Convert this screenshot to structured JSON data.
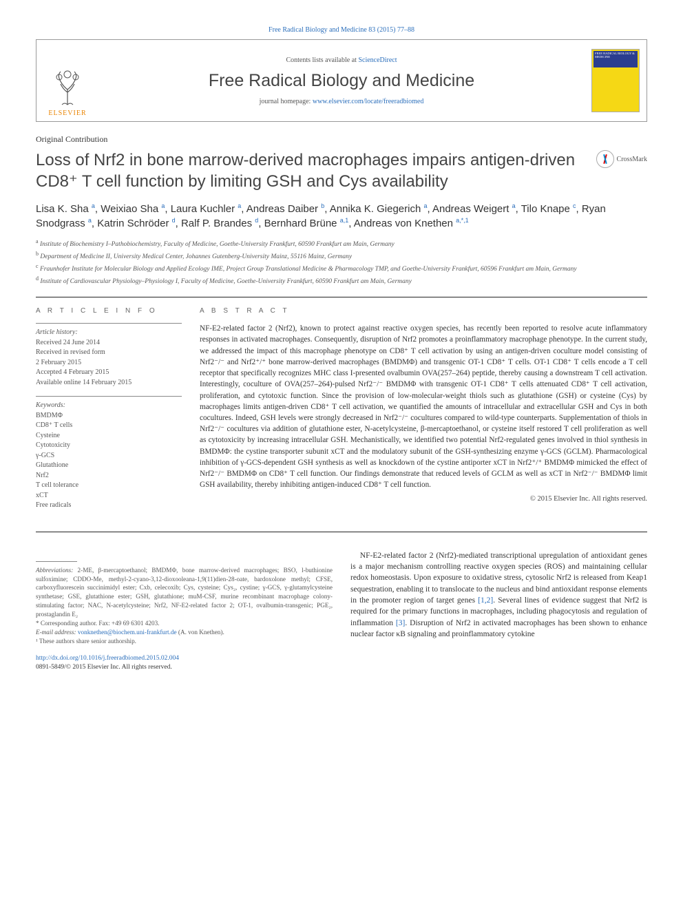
{
  "topLink": "Free Radical Biology and Medicine 83 (2015) 77–88",
  "header": {
    "contentsPrefix": "Contents lists available at ",
    "contentsLink": "ScienceDirect",
    "journal": "Free Radical Biology and Medicine",
    "homepagePrefix": "journal homepage: ",
    "homepageLink": "www.elsevier.com/locate/freeradbiomed",
    "elsevier": "ELSEVIER",
    "coverText": "FREE RADICAL BIOLOGY & MEDICINE"
  },
  "sectionLabel": "Original Contribution",
  "title": "Loss of Nrf2 in bone marrow-derived macrophages impairs antigen-driven CD8⁺ T cell function by limiting GSH and Cys availability",
  "crossmark": "CrossMark",
  "authorsHtml": "Lisa K. Sha <sup>a</sup>, Weixiao Sha <sup>a</sup>, Laura Kuchler <sup>a</sup>, Andreas Daiber <sup>b</sup>, Annika K. Giegerich <sup>a</sup>, Andreas Weigert <sup>a</sup>, Tilo Knape <sup>c</sup>, Ryan Snodgrass <sup>a</sup>, Katrin Schröder <sup>d</sup>, Ralf P. Brandes <sup>d</sup>, Bernhard Brüne <sup>a,1</sup>, Andreas von Knethen <sup>a,*,1</sup>",
  "affiliations": [
    {
      "sup": "a",
      "text": "Institute of Biochemistry I–Pathobiochemistry, Faculty of Medicine, Goethe-University Frankfurt, 60590 Frankfurt am Main, Germany"
    },
    {
      "sup": "b",
      "text": "Department of Medicine II, University Medical Center, Johannes Gutenberg-University Mainz, 55116 Mainz, Germany"
    },
    {
      "sup": "c",
      "text": "Fraunhofer Institute for Molecular Biology and Applied Ecology IME, Project Group Translational Medicine & Pharmacology TMP, and Goethe-University Frankfurt, 60596 Frankfurt am Main, Germany"
    },
    {
      "sup": "d",
      "text": "Institute of Cardiovascular Physiology–Physiology I, Faculty of Medicine, Goethe-University Frankfurt, 60590 Frankfurt am Main, Germany"
    }
  ],
  "articleInfo": {
    "heading": "A R T I C L E   I N F O",
    "historyLabel": "Article history:",
    "history": [
      "Received 24 June 2014",
      "Received in revised form",
      "2 February 2015",
      "Accepted 4 February 2015",
      "Available online 14 February 2015"
    ],
    "keywordsLabel": "Keywords:",
    "keywords": [
      "BMDMΦ",
      "CD8⁺ T cells",
      "Cysteine",
      "Cytotoxicity",
      "γ-GCS",
      "Glutathione",
      "Nrf2",
      "T cell tolerance",
      "xCT",
      "Free radicals"
    ]
  },
  "abstract": {
    "heading": "A B S T R A C T",
    "text": "NF-E2-related factor 2 (Nrf2), known to protect against reactive oxygen species, has recently been reported to resolve acute inflammatory responses in activated macrophages. Consequently, disruption of Nrf2 promotes a proinflammatory macrophage phenotype. In the current study, we addressed the impact of this macrophage phenotype on CD8⁺ T cell activation by using an antigen-driven coculture model consisting of Nrf2⁻/⁻ and Nrf2⁺/⁺ bone marrow-derived macrophages (BMDMΦ) and transgenic OT-1 CD8⁺ T cells. OT-1 CD8⁺ T cells encode a T cell receptor that specifically recognizes MHC class I-presented ovalbumin OVA(257–264) peptide, thereby causing a downstream T cell activation. Interestingly, coculture of OVA(257–264)-pulsed Nrf2⁻/⁻ BMDMΦ with transgenic OT-1 CD8⁺ T cells attenuated CD8⁺ T cell activation, proliferation, and cytotoxic function. Since the provision of low-molecular-weight thiols such as glutathione (GSH) or cysteine (Cys) by macrophages limits antigen-driven CD8⁺ T cell activation, we quantified the amounts of intracellular and extracellular GSH and Cys in both cocultures. Indeed, GSH levels were strongly decreased in Nrf2⁻/⁻ cocultures compared to wild-type counterparts. Supplementation of thiols in Nrf2⁻/⁻ cocultures via addition of glutathione ester, N-acetylcysteine, β-mercaptoethanol, or cysteine itself restored T cell proliferation as well as cytotoxicity by increasing intracellular GSH. Mechanistically, we identified two potential Nrf2-regulated genes involved in thiol synthesis in BMDMΦ: the cystine transporter subunit xCT and the modulatory subunit of the GSH-synthesizing enzyme γ-GCS (GCLM). Pharmacological inhibition of γ-GCS-dependent GSH synthesis as well as knockdown of the cystine antiporter xCT in Nrf2⁺/⁺ BMDMΦ mimicked the effect of Nrf2⁻/⁻ BMDMΦ on CD8⁺ T cell function. Our findings demonstrate that reduced levels of GCLM as well as xCT in Nrf2⁻/⁻ BMDMΦ limit GSH availability, thereby inhibiting antigen-induced CD8⁺ T cell function.",
    "copyright": "© 2015 Elsevier Inc. All rights reserved."
  },
  "body": {
    "right": "NF-E2-related factor 2 (Nrf2)-mediated transcriptional upregulation of antioxidant genes is a major mechanism controlling reactive oxygen species (ROS) and maintaining cellular redox homeostasis. Upon exposure to oxidative stress, cytosolic Nrf2 is released from Keap1 sequestration, enabling it to translocate to the nucleus and bind antioxidant response elements in the promoter region of target genes ",
    "ref1": "[1,2]",
    "rightCont": ". Several lines of evidence suggest that Nrf2 is required for the primary functions in macrophages, including phagocytosis and regulation of inflammation ",
    "ref2": "[3]",
    "rightCont2": ". Disruption of Nrf2 in activated macrophages has been shown to enhance nuclear factor κB signaling and proinflammatory cytokine"
  },
  "footnotes": {
    "abbrevLabel": "Abbreviations:",
    "abbrevText": " 2-ME, β-mercaptoethanol; BMDMΦ, bone marrow-derived macrophages; BSO, l-buthionine sulfoximine; CDDO-Me, methyl-2-cyano-3,12-dioxooleana-1,9(11)dien-28-oate, bardoxolone methyl; CFSE, carboxyfluorescein succinimidyl ester; Cxb, celecoxib; Cys, cysteine; Cys₂, cystine; γ-GCS, γ-glutamylcysteine synthetase; GSE, glutathione ester; GSH, glutathione; muM-CSF, murine recombinant macrophage colony-stimulating factor; NAC, N-acetylcysteine; Nrf2, NF-E2-related factor 2; OT-1, ovalbumin-transgenic; PGE₂, prostaglandin E₂",
    "corr": "* Corresponding author. Fax: +49 69 6301 4203.",
    "emailLabel": "E-mail address: ",
    "email": "vonknethen@biochem.uni-frankfurt.de",
    "emailSuffix": " (A. von Knethen).",
    "shared": "¹ These authors share senior authorship."
  },
  "doi": {
    "link": "http://dx.doi.org/10.1016/j.freeradbiomed.2015.02.004",
    "line2": "0891-5849/© 2015 Elsevier Inc. All rights reserved."
  },
  "colors": {
    "link": "#2a6ebb",
    "elsevier": "#e98300",
    "cover": "#f5d815",
    "coverBand": "#2b3d8f"
  }
}
